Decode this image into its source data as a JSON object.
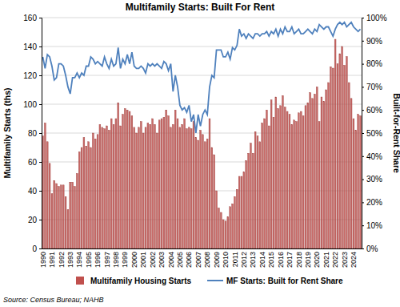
{
  "chart_data": {
    "type": "bar",
    "title": "Multifamily Starts: Built For Rent",
    "x_label": null,
    "y_label": "Multifamily Starts (ths)",
    "y2_label": "Built-for-Rent Share",
    "source": "Source: Census Bureau; NAHB",
    "categories": [
      "1990",
      null,
      null,
      null,
      "1991",
      null,
      null,
      null,
      "1992",
      null,
      null,
      null,
      "1993",
      null,
      null,
      null,
      "1994",
      null,
      null,
      null,
      "1995",
      null,
      null,
      null,
      "1996",
      null,
      null,
      null,
      "1997",
      null,
      null,
      null,
      "1998",
      null,
      null,
      null,
      "1999",
      null,
      null,
      null,
      "2000",
      null,
      null,
      null,
      "2001",
      null,
      null,
      null,
      "2002",
      null,
      null,
      null,
      "2003",
      null,
      null,
      null,
      "2004",
      null,
      null,
      null,
      "2005",
      null,
      null,
      null,
      "2006",
      null,
      null,
      null,
      "2007",
      null,
      null,
      null,
      "2008",
      null,
      null,
      null,
      "2009",
      null,
      null,
      null,
      "2010",
      null,
      null,
      null,
      "2011",
      null,
      null,
      null,
      "2012",
      null,
      null,
      null,
      "2013",
      null,
      null,
      null,
      "2014",
      null,
      null,
      null,
      "2015",
      null,
      null,
      null,
      "2016",
      null,
      null,
      null,
      "2017",
      null,
      null,
      null,
      "2018",
      null,
      null,
      null,
      "2019",
      null,
      null,
      null,
      "2020",
      null,
      null,
      null,
      "2021",
      null,
      null,
      null,
      "2022",
      null,
      null,
      null,
      "2023",
      null,
      null,
      null,
      "2024",
      null,
      null,
      null
    ],
    "series": [
      {
        "name": "Multifamily Housing Starts",
        "type": "bar",
        "color": "#c0504d",
        "values": [
          78,
          87,
          74,
          59,
          38,
          47,
          45,
          43,
          44,
          44,
          36,
          27,
          46,
          46,
          43,
          52,
          67,
          70,
          77,
          71,
          74,
          70,
          80,
          76,
          79,
          86,
          84,
          83,
          85,
          82,
          90,
          86,
          90,
          101,
          85,
          93,
          97,
          96,
          95,
          92,
          84,
          80,
          84,
          88,
          80,
          84,
          87,
          86,
          90,
          86,
          80,
          89,
          90,
          91,
          96,
          92,
          84,
          86,
          96,
          90,
          84,
          86,
          90,
          83,
          84,
          83,
          88,
          77,
          75,
          82,
          79,
          74,
          76,
          90,
          70,
          65,
          40,
          28,
          25,
          20,
          19,
          22,
          29,
          31,
          36,
          41,
          50,
          50,
          53,
          61,
          66,
          73,
          66,
          81,
          78,
          74,
          87,
          90,
          96,
          85,
          103,
          91,
          105,
          97,
          99,
          106,
          98,
          95,
          93,
          86,
          89,
          88,
          94,
          95,
          92,
          99,
          101,
          108,
          104,
          107,
          112,
          88,
          105,
          102,
          110,
          115,
          126,
          125,
          145,
          128,
          135,
          140,
          127,
          133,
          115,
          104,
          90,
          82,
          93,
          92
        ]
      },
      {
        "name": "MF Starts: Built for Rent Share",
        "type": "line",
        "axis": "y2",
        "color": "#4f81bd",
        "values": [
          83,
          78,
          84,
          83,
          79,
          73,
          74,
          80,
          80,
          79,
          75,
          70,
          67,
          74,
          74,
          76,
          74,
          76,
          75,
          79,
          79,
          83,
          82,
          80,
          81,
          80,
          79,
          83,
          80,
          78,
          82,
          79,
          80,
          87,
          78,
          82,
          80,
          84,
          80,
          85,
          79,
          78,
          78,
          79,
          78,
          76,
          80,
          79,
          80,
          79,
          80,
          79,
          78,
          81,
          80,
          77,
          80,
          68,
          75,
          70,
          62,
          60,
          61,
          59,
          62,
          55,
          58,
          50,
          58,
          53,
          58,
          60,
          58,
          70,
          75,
          74,
          86,
          86,
          86,
          83,
          83,
          85,
          82,
          87,
          86,
          88,
          95,
          92,
          93,
          91,
          93,
          92,
          91,
          93,
          93,
          92,
          93,
          93,
          94,
          92,
          94,
          93,
          95,
          92,
          95,
          93,
          96,
          94,
          94,
          96,
          93,
          94,
          95,
          93,
          93,
          94,
          95,
          94,
          93,
          95,
          94,
          97,
          96,
          95,
          96,
          96,
          94,
          92,
          95,
          97,
          98,
          97,
          98,
          96,
          97,
          98,
          96,
          95,
          94,
          95
        ]
      }
    ],
    "ylim": [
      0,
      160
    ],
    "yticks": [
      0,
      20,
      40,
      60,
      80,
      100,
      120,
      140,
      160
    ],
    "y2lim": [
      0,
      100
    ],
    "y2ticks": [
      {
        "value": 0,
        "label": "0%"
      },
      {
        "value": 10,
        "label": "10%"
      },
      {
        "value": 20,
        "label": "20%"
      },
      {
        "value": 30,
        "label": "30%"
      },
      {
        "value": 40,
        "label": "40%"
      },
      {
        "value": 50,
        "label": "50%"
      },
      {
        "value": 60,
        "label": "60%"
      },
      {
        "value": 70,
        "label": "70%"
      },
      {
        "value": 80,
        "label": "80%"
      },
      {
        "value": 90,
        "label": "90%"
      },
      {
        "value": 100,
        "label": "100%"
      }
    ],
    "grid": true,
    "legend": "bottom"
  }
}
